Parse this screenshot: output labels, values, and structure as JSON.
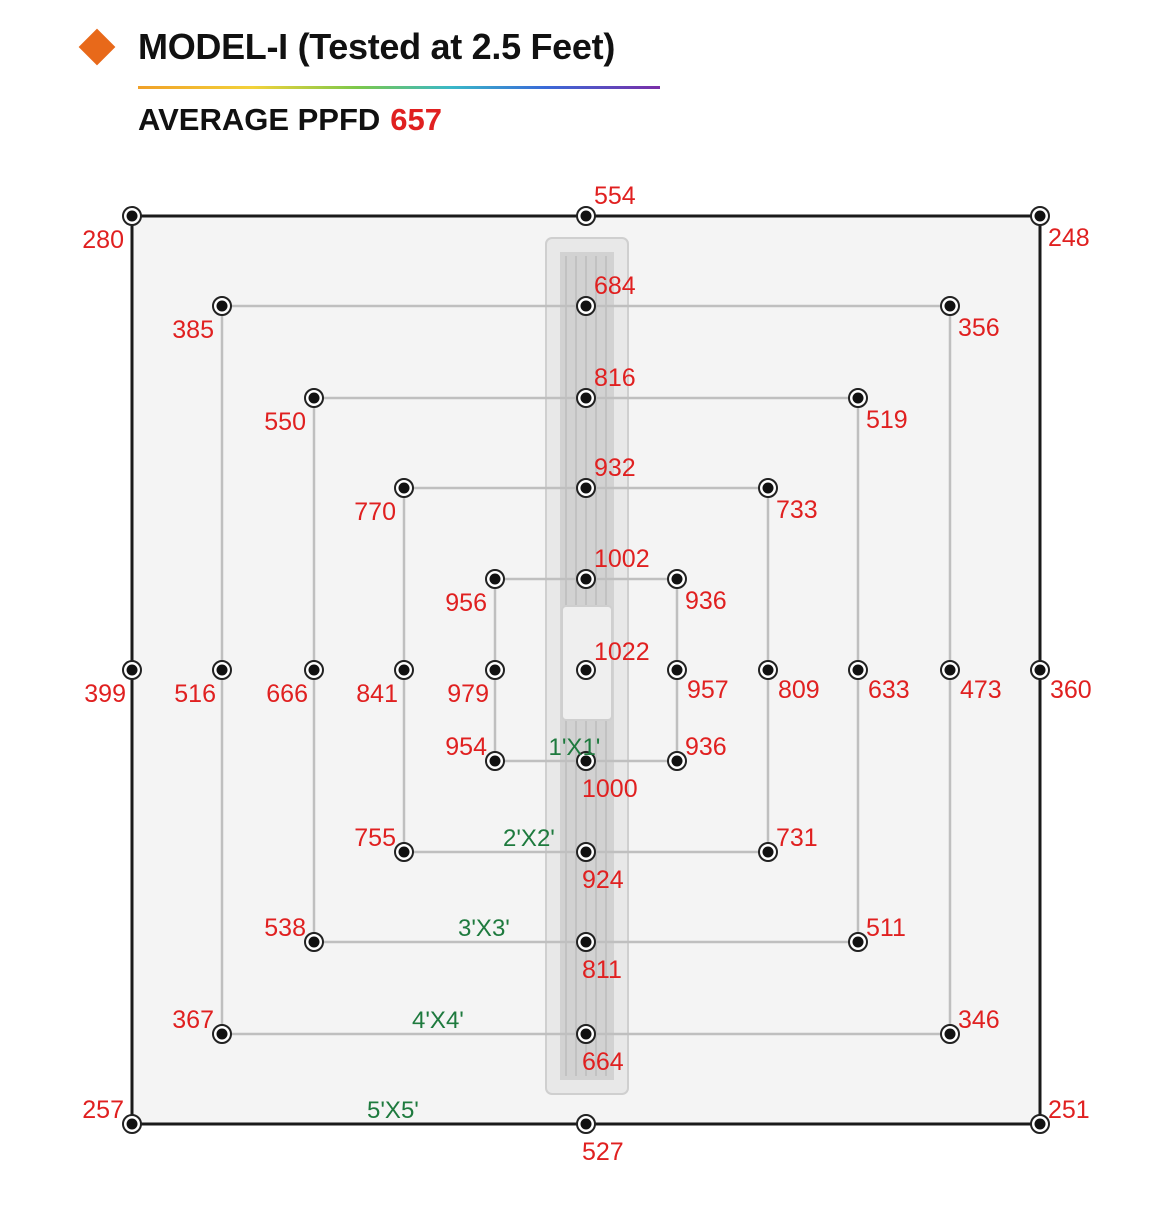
{
  "header": {
    "title": "MODEL-I (Tested at 2.5 Feet)",
    "subtitle_label": "AVERAGE PPFD",
    "subtitle_value": "657"
  },
  "colors": {
    "accent_diamond": "#e8691a",
    "value_red": "#e02020",
    "zone_green": "#1e7a3e",
    "frame": "#1a1a1a",
    "grid_line": "#bfbfbf",
    "field_bg": "#f4f4f4"
  },
  "diagram": {
    "zones": [
      {
        "label": "5'X5'",
        "values": {
          "tl": "280",
          "tc": "554",
          "tr": "248",
          "ml": "399",
          "mr": "360",
          "bl": "257",
          "bc": "527",
          "br": "251"
        }
      },
      {
        "label": "4'X4'",
        "values": {
          "tl": "385",
          "tc": "684",
          "tr": "356",
          "ml": "516",
          "mr": "473",
          "bl": "367",
          "bc": "664",
          "br": "346"
        }
      },
      {
        "label": "3'X3'",
        "values": {
          "tl": "550",
          "tc": "816",
          "tr": "519",
          "ml": "666",
          "mr": "633",
          "bl": "538",
          "bc": "811",
          "br": "511"
        }
      },
      {
        "label": "2'X2'",
        "values": {
          "tl": "770",
          "tc": "932",
          "tr": "733",
          "ml": "841",
          "mr": "809",
          "bl": "755",
          "bc": "924",
          "br": "731"
        }
      },
      {
        "label": "1'X1'",
        "values": {
          "tl": "956",
          "tc": "1002",
          "tr": "936",
          "ml": "979",
          "mr": "957",
          "bl": "954",
          "bc": "1000",
          "br": "936"
        }
      }
    ],
    "center_value": "1022"
  }
}
